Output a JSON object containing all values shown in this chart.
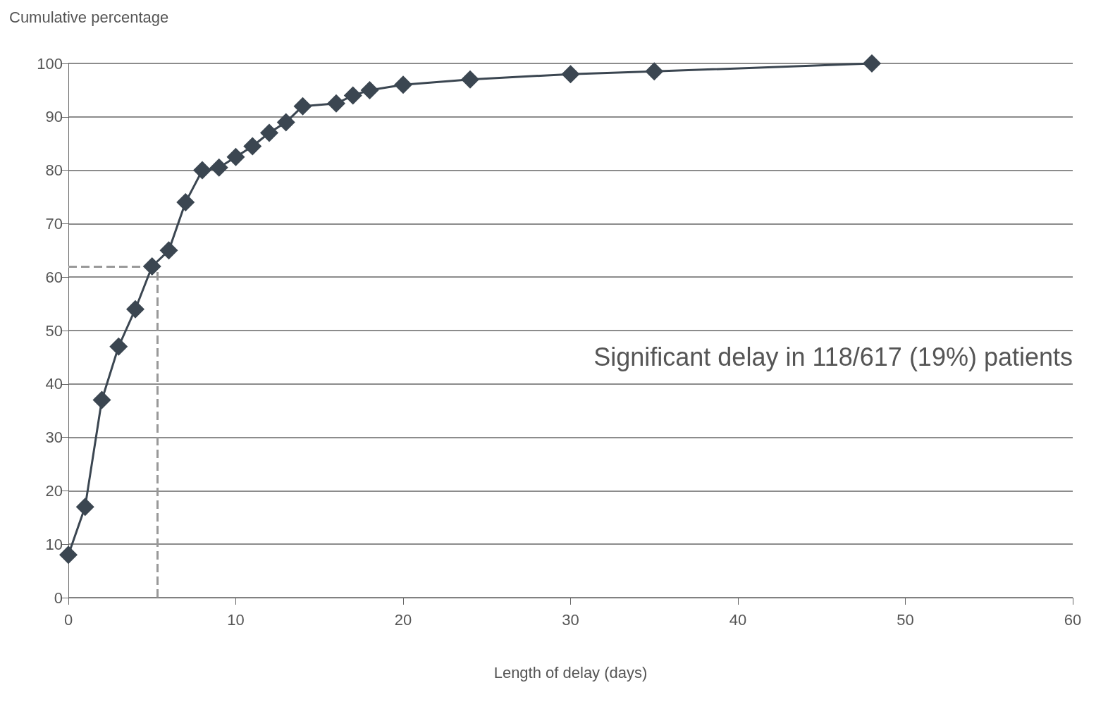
{
  "chart_data": {
    "type": "line",
    "xlabel": "Length of delay (days)",
    "ylabel": "Cumulative percentage",
    "annotations": [
      "Significant delay in 118/617 (19%) patients"
    ],
    "x": [
      0,
      1,
      2,
      3,
      4,
      5,
      6,
      7,
      8,
      9,
      10,
      11,
      12,
      13,
      14,
      16,
      17,
      18,
      20,
      24,
      30,
      35,
      48
    ],
    "series": [
      {
        "color": "#3b4651",
        "values": [
          8,
          17,
          37,
          47,
          54,
          62,
          65,
          74,
          80,
          80.5,
          82.5,
          84.5,
          87,
          89,
          92,
          92.5,
          94,
          95,
          96,
          97,
          98,
          98.5,
          100
        ]
      }
    ],
    "xlim": [
      0,
      60
    ],
    "xticks": [
      0,
      10,
      20,
      30,
      40,
      50,
      60
    ],
    "ylim": [
      0,
      100
    ],
    "yticks": [
      0,
      10,
      20,
      30,
      40,
      50,
      60,
      70,
      80,
      90,
      100
    ],
    "grid": "y",
    "marker": "diamond",
    "line_style": "solid",
    "ref_lines": [
      {
        "axis": "x",
        "value": 5.3,
        "color": "#999999",
        "line_style": "dashed"
      },
      {
        "axis": "y",
        "value": 62,
        "color": "#999999",
        "line_style": "dashed"
      }
    ]
  }
}
